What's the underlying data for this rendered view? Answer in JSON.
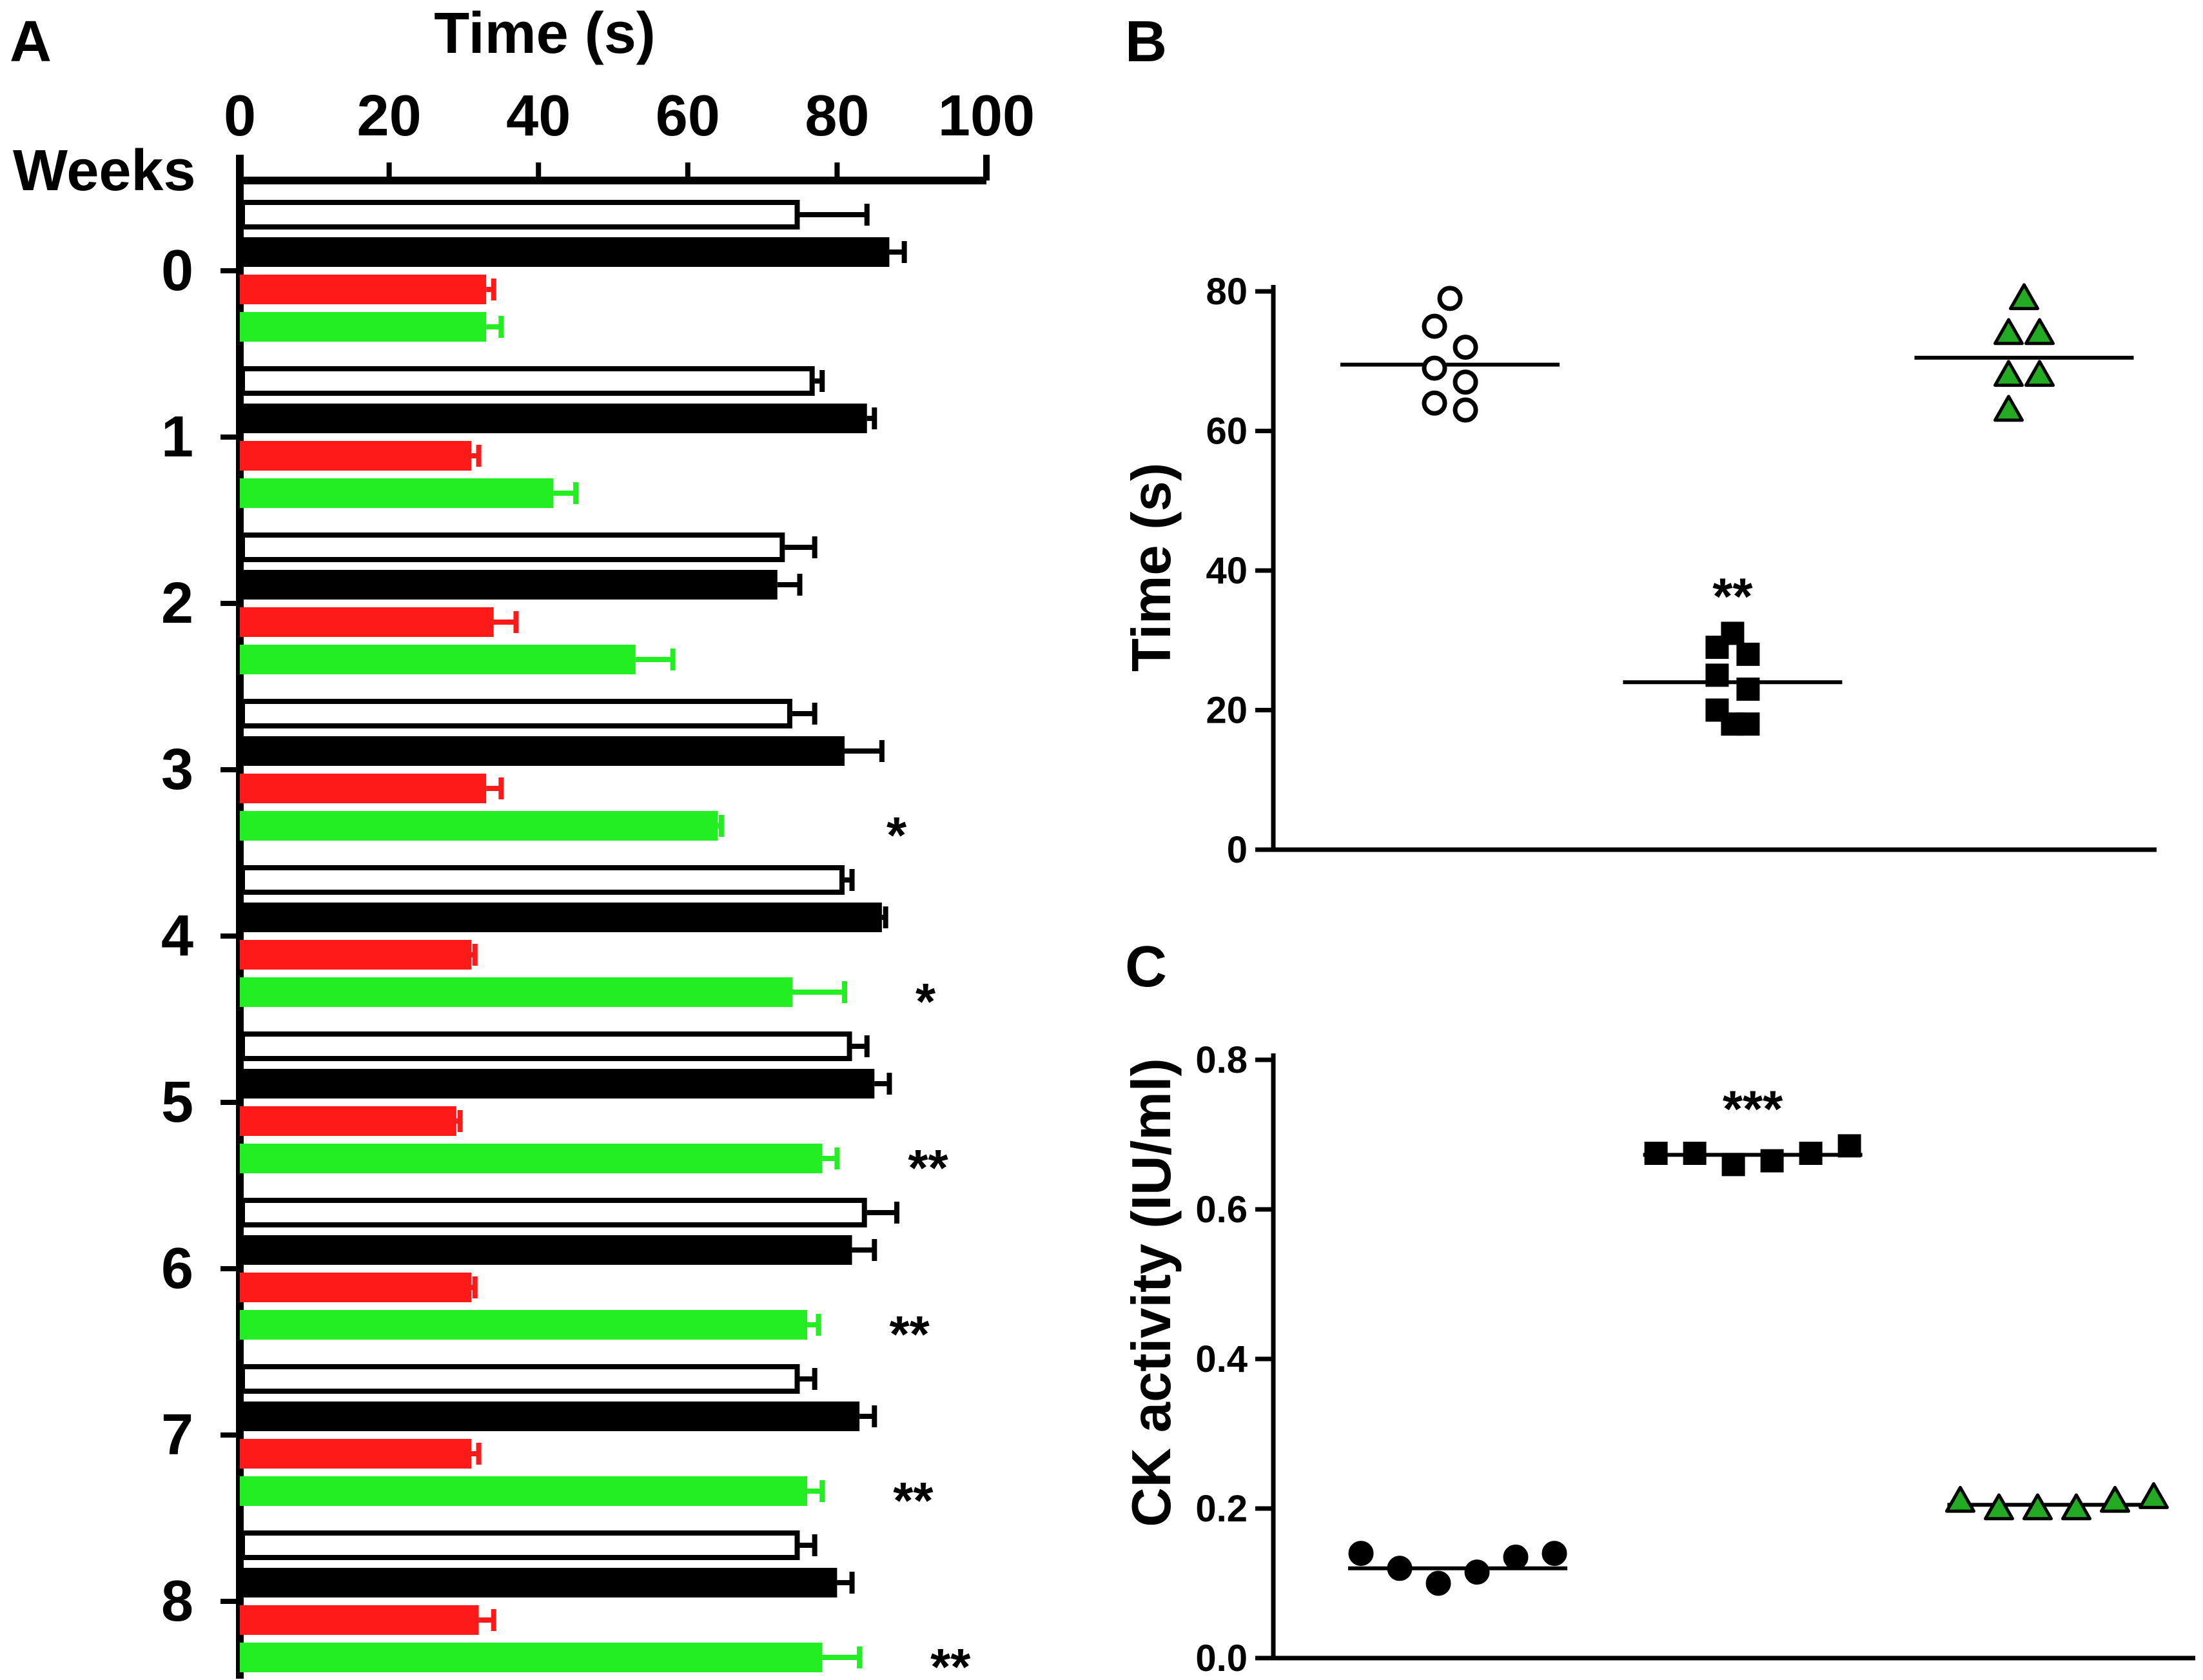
{
  "chart_data": [
    {
      "panel": "A",
      "type": "bar",
      "orientation": "horizontal",
      "title": "",
      "xlabel": "Time (s)",
      "ylabel": "Weeks",
      "xlim": [
        0,
        100
      ],
      "xticks": [
        "0",
        "20",
        "40",
        "60",
        "80",
        "100"
      ],
      "categories": [
        "0",
        "1",
        "2",
        "3",
        "4",
        "5",
        "6",
        "7",
        "8"
      ],
      "series": [
        {
          "name": "white",
          "color": "#ffffff",
          "stroke": "#000000",
          "values": [
            75,
            77,
            73,
            74,
            81,
            82,
            84,
            75,
            75
          ],
          "errors": [
            9,
            1,
            4,
            3,
            1,
            2,
            4,
            2,
            2
          ]
        },
        {
          "name": "black",
          "color": "#000000",
          "stroke": "#000000",
          "values": [
            87,
            84,
            72,
            81,
            86,
            85,
            82,
            83,
            80
          ],
          "errors": [
            2,
            1,
            3,
            5,
            0.5,
            2,
            3,
            2,
            2
          ]
        },
        {
          "name": "red",
          "color": "#ff1a1a",
          "stroke": "#ff1a1a",
          "values": [
            33,
            31,
            34,
            33,
            31,
            29,
            31,
            31,
            32
          ],
          "errors": [
            1,
            1,
            3,
            2,
            0.5,
            0.5,
            0.5,
            1,
            2
          ]
        },
        {
          "name": "green",
          "color": "#22ee22",
          "stroke": "#22ee22",
          "values": [
            33,
            42,
            53,
            64,
            74,
            78,
            76,
            76,
            78
          ],
          "errors": [
            2,
            3,
            5,
            0.5,
            7,
            2,
            1.5,
            2,
            5
          ]
        }
      ],
      "annotations": [
        "",
        "",
        "",
        "*",
        "*",
        "**",
        "**",
        "**",
        "**"
      ]
    },
    {
      "panel": "B",
      "type": "scatter",
      "title": "",
      "xlabel": "",
      "ylabel": "Time (s)",
      "ylim": [
        0,
        80
      ],
      "yticks": [
        "0",
        "20",
        "40",
        "60",
        "80"
      ],
      "groups": [
        {
          "marker": "open-circle",
          "fill": "#ffffff",
          "values": [
            79,
            75,
            72,
            69,
            67,
            64,
            63
          ],
          "mean": 69.5,
          "annotation": ""
        },
        {
          "marker": "square",
          "fill": "#000000",
          "values": [
            31,
            29,
            28,
            25,
            23,
            20,
            18,
            18
          ],
          "mean": 24,
          "annotation": "**"
        },
        {
          "marker": "triangle",
          "fill": "#22aa22",
          "values": [
            79,
            74,
            74,
            68,
            68,
            63
          ],
          "mean": 70.5,
          "annotation": ""
        }
      ]
    },
    {
      "panel": "C",
      "type": "scatter",
      "title": "",
      "xlabel": "",
      "ylabel": "CK activity (IU/ml)",
      "ylim": [
        0,
        0.8
      ],
      "yticks": [
        "0.0",
        "0.2",
        "0.4",
        "0.6",
        "0.8"
      ],
      "groups": [
        {
          "marker": "filled-circle",
          "fill": "#000000",
          "values": [
            0.14,
            0.12,
            0.1,
            0.115,
            0.135,
            0.14
          ],
          "mean": 0.12,
          "annotation": ""
        },
        {
          "marker": "square",
          "fill": "#000000",
          "values": [
            0.675,
            0.675,
            0.66,
            0.665,
            0.675,
            0.685
          ],
          "mean": 0.673,
          "annotation": "***"
        },
        {
          "marker": "triangle",
          "fill": "#22aa22",
          "values": [
            0.21,
            0.2,
            0.2,
            0.2,
            0.21,
            0.215
          ],
          "mean": 0.205,
          "annotation": ""
        }
      ]
    }
  ]
}
